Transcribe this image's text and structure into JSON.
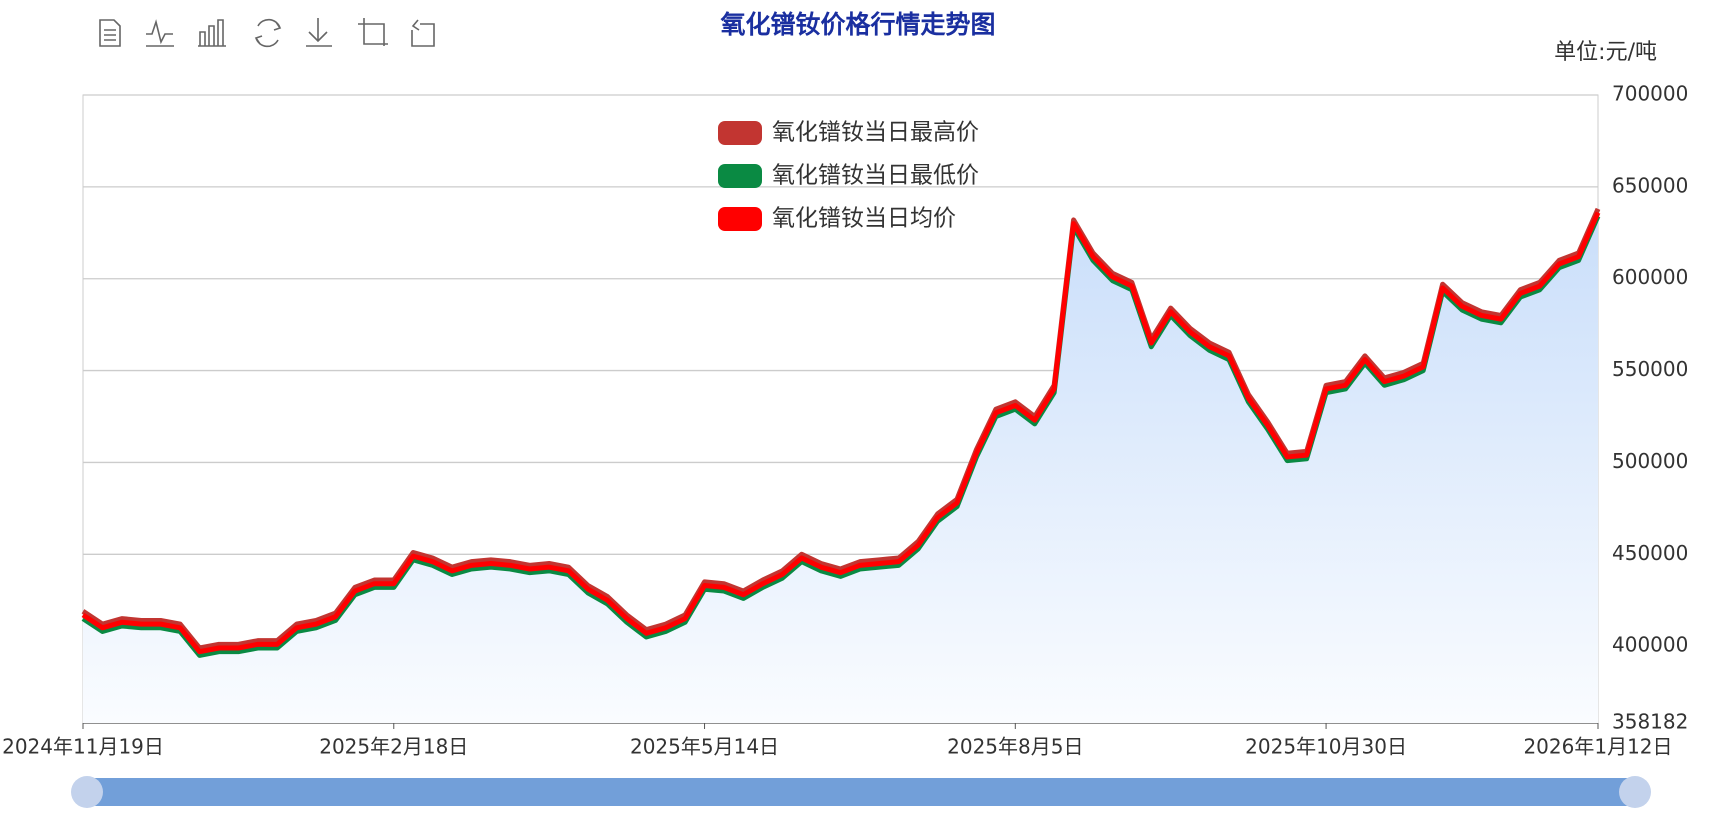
{
  "chart_data": {
    "type": "line",
    "title": "氧化镨钕价格行情走势图",
    "y_axis_label": "单位:元/吨",
    "categories": [
      "2024年11月19日",
      null,
      null,
      null,
      null,
      null,
      null,
      null,
      null,
      null,
      null,
      null,
      null,
      null,
      null,
      null,
      "2025年2月18日",
      null,
      null,
      null,
      null,
      null,
      null,
      null,
      null,
      null,
      null,
      null,
      null,
      null,
      null,
      null,
      "2025年5月14日",
      null,
      null,
      null,
      null,
      null,
      null,
      null,
      null,
      null,
      null,
      null,
      null,
      null,
      null,
      null,
      "2025年8月5日",
      null,
      null,
      null,
      null,
      null,
      null,
      null,
      null,
      null,
      null,
      null,
      null,
      null,
      null,
      null,
      "2025年10月30日",
      null,
      null,
      null,
      null,
      null,
      null,
      null,
      null,
      null,
      null,
      null,
      null,
      null,
      "2026年1月12日"
    ],
    "series": [
      {
        "name": "氧化镨钕当日最高价",
        "color": "#c23531",
        "values": [
          419000,
          412000,
          415000,
          414000,
          414000,
          412000,
          399000,
          401000,
          401000,
          403000,
          403000,
          412000,
          414000,
          418000,
          432000,
          436000,
          436000,
          451000,
          448000,
          443000,
          446000,
          447000,
          446000,
          444000,
          445000,
          443000,
          433000,
          427000,
          417000,
          409000,
          412000,
          417000,
          435000,
          434000,
          430000,
          436000,
          441000,
          450000,
          445000,
          442000,
          446000,
          447000,
          448000,
          457000,
          472000,
          480000,
          507000,
          529000,
          533000,
          525000,
          542000,
          632000,
          614000,
          603000,
          598000,
          567000,
          584000,
          573000,
          565000,
          560000,
          537000,
          522000,
          505000,
          506000,
          542000,
          544000,
          558000,
          546000,
          549000,
          554000,
          597000,
          587000,
          582000,
          580000,
          594000,
          598000,
          610000,
          614000,
          638000
        ]
      },
      {
        "name": "氧化镨钕当日最低价",
        "color": "#0a8a43",
        "values": [
          415000,
          408000,
          411000,
          410000,
          410000,
          408000,
          395000,
          397000,
          397000,
          399000,
          399000,
          408000,
          410000,
          414000,
          428000,
          432000,
          432000,
          447000,
          444000,
          439000,
          442000,
          443000,
          442000,
          440000,
          441000,
          439000,
          429000,
          423000,
          413000,
          405000,
          408000,
          413000,
          431000,
          430000,
          426000,
          432000,
          437000,
          446000,
          441000,
          438000,
          442000,
          443000,
          444000,
          453000,
          468000,
          476000,
          503000,
          525000,
          529000,
          521000,
          538000,
          628000,
          610000,
          599000,
          594000,
          563000,
          580000,
          569000,
          561000,
          556000,
          533000,
          518000,
          501000,
          502000,
          538000,
          540000,
          554000,
          542000,
          545000,
          550000,
          593000,
          583000,
          578000,
          576000,
          590000,
          594000,
          606000,
          610000,
          634000
        ]
      },
      {
        "name": "氧化镨钕当日均价",
        "color": "#ff0000",
        "values": [
          417000,
          410000,
          413000,
          412000,
          412000,
          410000,
          397000,
          399000,
          399000,
          401000,
          401000,
          410000,
          412000,
          416000,
          430000,
          434000,
          434000,
          449000,
          446000,
          441000,
          444000,
          445000,
          444000,
          442000,
          443000,
          441000,
          431000,
          425000,
          415000,
          407000,
          410000,
          415000,
          433000,
          432000,
          428000,
          434000,
          439000,
          448000,
          443000,
          440000,
          444000,
          445000,
          446000,
          455000,
          470000,
          478000,
          505000,
          527000,
          531000,
          523000,
          540000,
          630000,
          612000,
          601000,
          596000,
          565000,
          582000,
          571000,
          563000,
          558000,
          535000,
          520000,
          503000,
          504000,
          540000,
          542000,
          556000,
          544000,
          547000,
          552000,
          595000,
          585000,
          580000,
          578000,
          592000,
          596000,
          608000,
          612000,
          636000
        ]
      }
    ],
    "ylim": [
      358182,
      700000
    ],
    "yticks": [
      358182,
      400000,
      450000,
      500000,
      550000,
      600000,
      650000,
      700000
    ],
    "grid": true
  }
}
